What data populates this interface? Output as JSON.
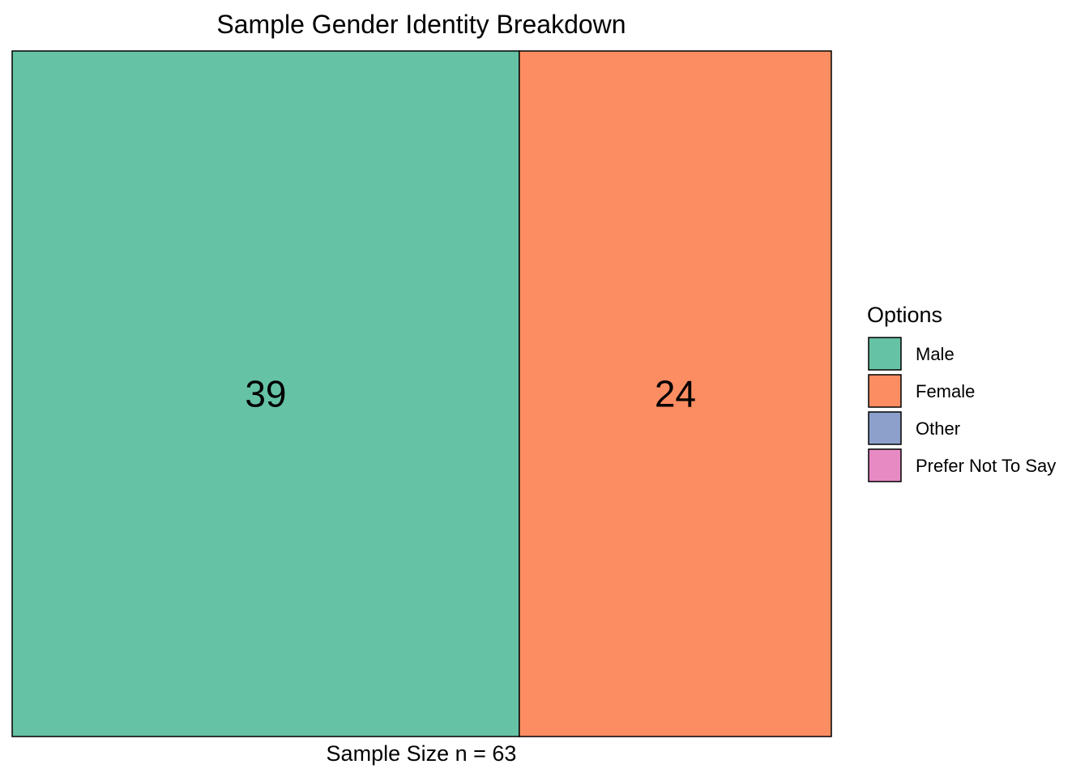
{
  "chart_data": {
    "type": "treemap",
    "title": "Sample Gender Identity Breakdown",
    "caption": "Sample Size n = 63",
    "legend": {
      "title": "Options",
      "position": "right"
    },
    "categories": [
      "Male",
      "Female",
      "Other",
      "Prefer Not To Say"
    ],
    "values": [
      39,
      24,
      0,
      0
    ],
    "colors": {
      "Male": "#66c2a5",
      "Female": "#fc8d62",
      "Other": "#8da0cb",
      "Prefer Not To Say": "#e78ac3"
    },
    "value_labels": [
      "39",
      "24"
    ]
  }
}
